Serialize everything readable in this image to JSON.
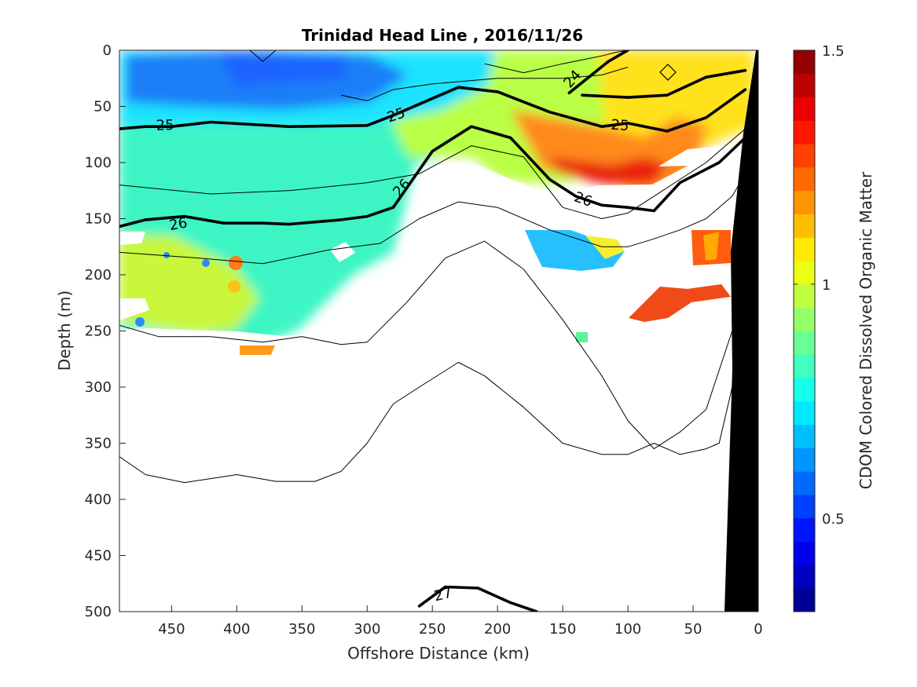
{
  "chart_data": {
    "type": "heatmap",
    "title": "Trinidad Head Line , 2016/11/26",
    "xlabel": "Offshore Distance (km)",
    "ylabel": "Depth (m)",
    "colorbar_label": "CDOM Colored Dissolved Organic Matter",
    "xlim": [
      490,
      0
    ],
    "ylim": [
      0,
      500
    ],
    "clim": [
      0.3,
      1.5
    ],
    "x_ticks": [
      450,
      400,
      350,
      300,
      250,
      200,
      150,
      100,
      50,
      0
    ],
    "y_ticks": [
      0,
      50,
      100,
      150,
      200,
      250,
      300,
      350,
      400,
      450,
      500
    ],
    "colorbar_ticks": [
      0.5,
      1,
      1.5
    ],
    "colormap": "jet",
    "grid": false,
    "cdom_regions": [
      {
        "x": [
          490,
          300,
          260,
          240
        ],
        "depth": [
          0,
          5,
          20,
          0
        ],
        "value": 0.72
      },
      {
        "x": [
          490,
          480,
          380,
          300,
          290,
          250
        ],
        "depth": [
          0,
          30,
          60,
          65,
          40,
          0
        ],
        "value": 0.8
      },
      {
        "x": [
          490,
          330,
          260
        ],
        "depth": [
          60,
          100,
          110
        ],
        "value": 0.85
      },
      {
        "x": [
          490,
          260
        ],
        "depth": [
          100,
          250
        ],
        "value": 0.9
      },
      {
        "x": [
          250,
          180,
          120
        ],
        "depth": [
          10,
          40,
          90
        ],
        "value": 1.05
      },
      {
        "x": [
          150,
          80,
          40
        ],
        "depth": [
          60,
          90,
          110
        ],
        "value": 1.3
      },
      {
        "x": [
          90,
          10
        ],
        "depth": [
          0,
          60
        ],
        "value": 1.15
      }
    ],
    "isopycnal_labels": [
      {
        "text": "25",
        "x": 455,
        "depth": 66
      },
      {
        "text": "25",
        "x": 278,
        "depth": 57
      },
      {
        "text": "25",
        "x": 106,
        "depth": 66
      },
      {
        "text": "24",
        "x": 143,
        "depth": 25
      },
      {
        "text": "26",
        "x": 445,
        "depth": 154
      },
      {
        "text": "26",
        "x": 274,
        "depth": 122
      },
      {
        "text": "26",
        "x": 134,
        "depth": 132
      },
      {
        "text": "27",
        "x": 242,
        "depth": 484
      }
    ],
    "isopycnals_bold": [
      {
        "value": 25,
        "x": [
          490,
          470,
          450,
          420,
          360,
          300,
          280,
          230,
          200,
          160,
          120,
          100,
          70,
          40,
          10
        ],
        "depth": [
          70,
          68,
          68,
          64,
          68,
          67,
          58,
          33,
          37,
          55,
          68,
          65,
          72,
          60,
          35
        ]
      },
      {
        "value": 24,
        "x": [
          145,
          130,
          115,
          100
        ],
        "depth": [
          38,
          24,
          10,
          0
        ]
      },
      {
        "value": 24,
        "x": [
          135,
          100,
          70,
          40,
          10
        ],
        "depth": [
          40,
          42,
          40,
          24,
          18
        ]
      },
      {
        "value": 26,
        "x": [
          490,
          470,
          440,
          410,
          380,
          360,
          320,
          300,
          280,
          250,
          220,
          190,
          160,
          140,
          120,
          100,
          80,
          60,
          30,
          10
        ],
        "depth": [
          157,
          151,
          148,
          154,
          154,
          155,
          151,
          148,
          140,
          90,
          68,
          78,
          115,
          130,
          138,
          140,
          143,
          118,
          100,
          78
        ]
      },
      {
        "value": 27,
        "x": [
          260,
          240,
          215,
          190,
          170
        ],
        "depth": [
          495,
          478,
          479,
          492,
          500
        ]
      }
    ],
    "isopycnals_thin": [
      {
        "x": [
          490,
          460,
          420,
          380,
          350,
          320,
          300,
          270,
          240,
          210,
          180,
          150,
          120,
          100,
          80,
          60,
          40,
          20,
          10
        ],
        "depth": [
          245,
          255,
          255,
          260,
          255,
          262,
          260,
          225,
          185,
          170,
          195,
          240,
          290,
          330,
          355,
          340,
          320,
          250,
          210
        ]
      },
      {
        "x": [
          490,
          470,
          440,
          400,
          370,
          340,
          320,
          300,
          280,
          260,
          230,
          210,
          180,
          150,
          120,
          100,
          80,
          60,
          40,
          30,
          20,
          15
        ],
        "depth": [
          362,
          378,
          385,
          378,
          384,
          384,
          375,
          350,
          315,
          300,
          278,
          290,
          318,
          350,
          360,
          360,
          350,
          360,
          355,
          350,
          300,
          250
        ]
      },
      {
        "x": [
          490,
          420,
          360,
          300,
          260,
          220,
          180,
          150,
          120,
          100,
          80,
          60,
          40,
          20,
          10
        ],
        "depth": [
          120,
          128,
          125,
          118,
          110,
          85,
          95,
          140,
          150,
          145,
          130,
          115,
          100,
          80,
          70
        ]
      },
      {
        "x": [
          490,
          430,
          380,
          330,
          290,
          260,
          230,
          200,
          160,
          120,
          100,
          80,
          60,
          40,
          20,
          10
        ],
        "depth": [
          180,
          185,
          190,
          178,
          172,
          150,
          135,
          140,
          160,
          175,
          175,
          168,
          160,
          150,
          130,
          110
        ]
      },
      {
        "x": [
          320,
          300,
          280,
          250,
          200,
          150,
          120,
          100
        ],
        "depth": [
          40,
          45,
          35,
          30,
          25,
          25,
          22,
          15
        ]
      },
      {
        "x": [
          210,
          180,
          150,
          120,
          110,
          100
        ],
        "depth": [
          12,
          20,
          12,
          5,
          2,
          0
        ]
      },
      {
        "x": [
          390,
          380,
          370
        ],
        "depth": [
          0,
          10,
          0
        ]
      }
    ]
  }
}
